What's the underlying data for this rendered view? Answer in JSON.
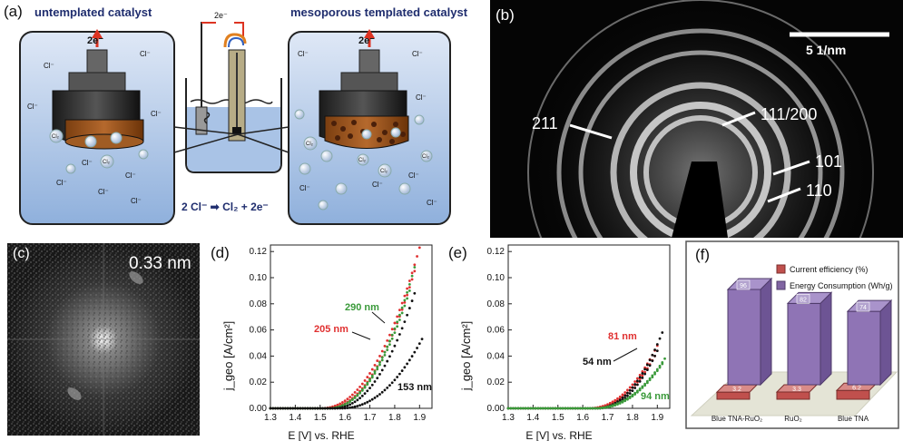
{
  "panel_a": {
    "label": "(a)",
    "left_title": "untemplated catalyst",
    "right_title": "mesoporous templated catalyst",
    "electron_left": "2e⁻",
    "electron_right": "2e⁻",
    "electron_center": "2e⁻",
    "chloride": "Cl⁻",
    "cl2": "Cl₂",
    "reaction": "2 Cl⁻ ➡ Cl₂ + 2e⁻"
  },
  "panel_b": {
    "label": "(b)",
    "scale": "5 1/nm",
    "rings": [
      "211",
      "111/200",
      "101",
      "110"
    ]
  },
  "panel_c": {
    "label": "(c)",
    "distance": "0.33 nm"
  },
  "panel_d": {
    "label": "(d)",
    "ylabel": "j_geo [A/cm²]",
    "xlabel": "E [V] vs. RHE",
    "annotations": [
      {
        "text": "290 nm",
        "color": "#3a9a3a"
      },
      {
        "text": "205 nm",
        "color": "#e03030"
      },
      {
        "text": "153 nm",
        "color": "#111111"
      }
    ]
  },
  "panel_e": {
    "label": "(e)",
    "ylabel": "j_geo [A/cm²]",
    "xlabel": "E [V] vs. RHE",
    "annotations": [
      {
        "text": "81 nm",
        "color": "#e03030"
      },
      {
        "text": "54 nm",
        "color": "#111111"
      },
      {
        "text": "94 nm",
        "color": "#3a9a3a"
      }
    ]
  },
  "panel_f": {
    "label": "(f)",
    "legend": [
      {
        "name": "Current efficiency (%)",
        "color": "#c0504d"
      },
      {
        "name": "Energy Consumption (Wh/g)",
        "color": "#8064a2"
      }
    ]
  },
  "chart_data": [
    {
      "type": "scatter",
      "panel": "d",
      "xlabel": "E [V] vs. RHE",
      "ylabel": "j_geo [A/cm²]",
      "xlim": [
        1.3,
        1.95
      ],
      "ylim": [
        0,
        0.125
      ],
      "xticks": [
        1.3,
        1.4,
        1.5,
        1.6,
        1.7,
        1.8,
        1.9
      ],
      "yticks": [
        0.0,
        0.02,
        0.04,
        0.06,
        0.08,
        0.1,
        0.12
      ],
      "series": [
        {
          "name": "205 nm",
          "color": "#e03030",
          "onset": 1.5,
          "end": 1.9,
          "ymax": 0.123
        },
        {
          "name": "205 nm",
          "color": "#e03030",
          "onset": 1.52,
          "end": 1.88,
          "ymax": 0.105
        },
        {
          "name": "290 nm",
          "color": "#3a9a3a",
          "onset": 1.53,
          "end": 1.88,
          "ymax": 0.108
        },
        {
          "name": "290 nm",
          "color": "#3a9a3a",
          "onset": 1.53,
          "end": 1.86,
          "ymax": 0.09
        },
        {
          "name": "153 nm",
          "color": "#111111",
          "onset": 1.55,
          "end": 1.88,
          "ymax": 0.088
        },
        {
          "name": "153 nm",
          "color": "#111111",
          "onset": 1.58,
          "end": 1.91,
          "ymax": 0.053
        }
      ]
    },
    {
      "type": "scatter",
      "panel": "e",
      "xlabel": "E [V] vs. RHE",
      "ylabel": "j_geo [A/cm²]",
      "xlim": [
        1.3,
        1.95
      ],
      "ylim": [
        0,
        0.125
      ],
      "xticks": [
        1.3,
        1.4,
        1.5,
        1.6,
        1.7,
        1.8,
        1.9
      ],
      "yticks": [
        0.0,
        0.02,
        0.04,
        0.06,
        0.08,
        0.1,
        0.12
      ],
      "series": [
        {
          "name": "81 nm",
          "color": "#e03030",
          "onset": 1.62,
          "end": 1.9,
          "ymax": 0.048
        },
        {
          "name": "81 nm",
          "color": "#e03030",
          "onset": 1.63,
          "end": 1.89,
          "ymax": 0.04
        },
        {
          "name": "54 nm",
          "color": "#111111",
          "onset": 1.65,
          "end": 1.92,
          "ymax": 0.058
        },
        {
          "name": "54 nm",
          "color": "#111111",
          "onset": 1.66,
          "end": 1.9,
          "ymax": 0.044
        },
        {
          "name": "94 nm",
          "color": "#3a9a3a",
          "onset": 1.64,
          "end": 1.93,
          "ymax": 0.038
        },
        {
          "name": "94 nm",
          "color": "#3a9a3a",
          "onset": 1.65,
          "end": 1.92,
          "ymax": 0.034
        }
      ]
    },
    {
      "type": "bar",
      "panel": "f",
      "categories": [
        "Blue TNA-RuO₂",
        "RuO₂",
        "Blue TNA"
      ],
      "series": [
        {
          "name": "Current efficiency (%)",
          "values": [
            3.2,
            3.3,
            6.2
          ]
        },
        {
          "name": "Energy Consumption (Wh/g)",
          "values": [
            96,
            82,
            74
          ]
        }
      ]
    }
  ]
}
